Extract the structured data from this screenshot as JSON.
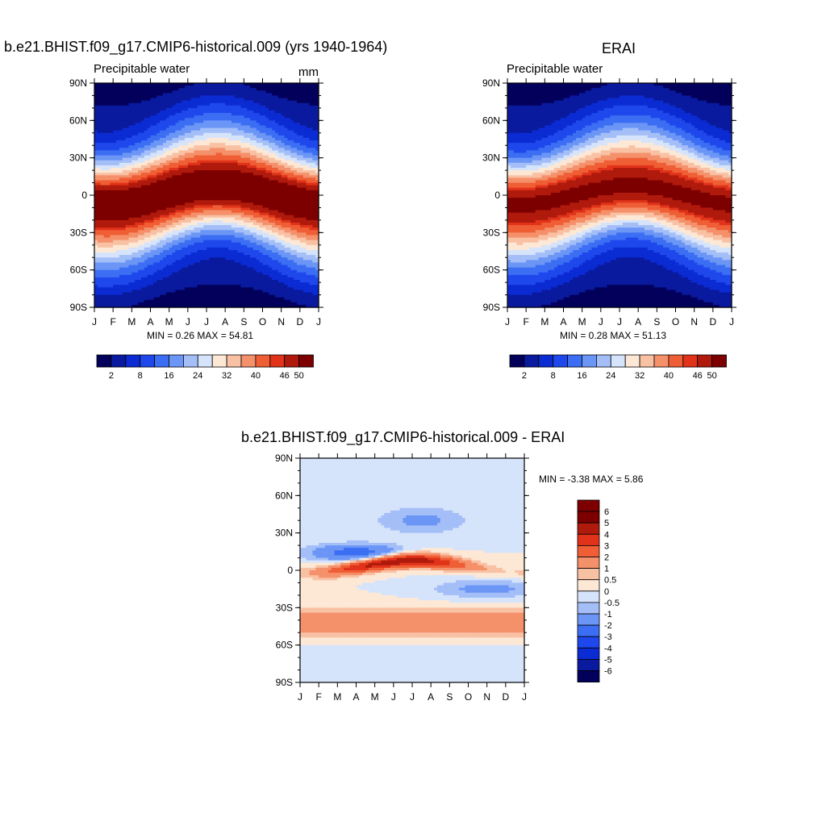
{
  "chart_data": [
    {
      "type": "heatmap",
      "panel": "model",
      "title": "b.e21.BHIST.f09_g17.CMIP6-historical.009 (yrs 1940-1964)",
      "variable": "Precipitable water",
      "units": "mm",
      "min_text": "MIN =   0.26 MAX =  54.81",
      "x_ticks": [
        "J",
        "F",
        "M",
        "A",
        "M",
        "J",
        "J",
        "A",
        "S",
        "O",
        "N",
        "D",
        "J"
      ],
      "y_ticks": [
        "90N",
        "60N",
        "30N",
        "0",
        "30S",
        "60S",
        "90S"
      ],
      "xlim": [
        0,
        12
      ],
      "ylim": [
        -90,
        90
      ],
      "colorbar_labels": [
        "2",
        "8",
        "16",
        "24",
        "32",
        "40",
        "46",
        "50"
      ],
      "colorbar_colors": [
        "#02005a",
        "#0a1a9e",
        "#0b2bd3",
        "#1f48ec",
        "#3c6ef3",
        "#6c96f6",
        "#a4bef8",
        "#d6e4fb",
        "#fde8d6",
        "#f9c1a4",
        "#f4916b",
        "#ef5e35",
        "#e1331a",
        "#b01a0c",
        "#7d0000"
      ],
      "contours": {
        "model": "seasonal_max",
        "p_lat_offset": 0,
        "peak_amp": 54.8,
        "peak_month_ref": 7.3,
        "min_val": 0.26
      }
    },
    {
      "type": "heatmap",
      "panel": "obs",
      "title": "ERAI",
      "variable": "Precipitable water",
      "min_text": "MIN =   0.28 MAX =  51.13",
      "x_ticks": [
        "J",
        "F",
        "M",
        "A",
        "M",
        "J",
        "J",
        "A",
        "S",
        "O",
        "N",
        "D",
        "J"
      ],
      "y_ticks": [
        "90N",
        "60N",
        "30N",
        "0",
        "30S",
        "60S",
        "90S"
      ],
      "xlim": [
        0,
        12
      ],
      "ylim": [
        -90,
        90
      ],
      "colorbar_labels": [
        "2",
        "8",
        "16",
        "24",
        "32",
        "40",
        "46",
        "50"
      ],
      "colorbar_colors": [
        "#02005a",
        "#0a1a9e",
        "#0b2bd3",
        "#1f48ec",
        "#3c6ef3",
        "#6c96f6",
        "#a4bef8",
        "#d6e4fb",
        "#fde8d6",
        "#f9c1a4",
        "#f4916b",
        "#ef5e35",
        "#e1331a",
        "#b01a0c",
        "#7d0000"
      ],
      "contours": {
        "model": "seasonal_max",
        "p_lat_offset": 0,
        "peak_amp": 51.1,
        "peak_month_ref": 7.4,
        "min_val": 0.28
      }
    },
    {
      "type": "heatmap",
      "panel": "difference",
      "title": "b.e21.BHIST.f09_g17.CMIP6-historical.009 - ERAI",
      "min_text": "MIN =  -3.38 MAX =   5.86",
      "x_ticks": [
        "J",
        "F",
        "M",
        "A",
        "M",
        "J",
        "J",
        "A",
        "S",
        "O",
        "N",
        "D",
        "J"
      ],
      "y_ticks": [
        "90N",
        "60N",
        "30N",
        "0",
        "30S",
        "60S",
        "90S"
      ],
      "xlim": [
        0,
        12
      ],
      "ylim": [
        -90,
        90
      ],
      "colorbar_labels": [
        "6",
        "5",
        "4",
        "3",
        "2",
        "1",
        "0.5",
        "0",
        "-0.5",
        "-1",
        "-2",
        "-3",
        "-4",
        "-5",
        "-6"
      ],
      "colorbar_colors": [
        "#7d0000",
        "#b01a0c",
        "#e1331a",
        "#ef5e35",
        "#f4916b",
        "#f9c1a4",
        "#fde8d6",
        "#d6e4fb",
        "#a4bef8",
        "#6c96f6",
        "#3c6ef3",
        "#1f48ec",
        "#0b2bd3",
        "#0a1a9e",
        "#02005a"
      ],
      "min": -3.38,
      "max": 5.86
    }
  ]
}
